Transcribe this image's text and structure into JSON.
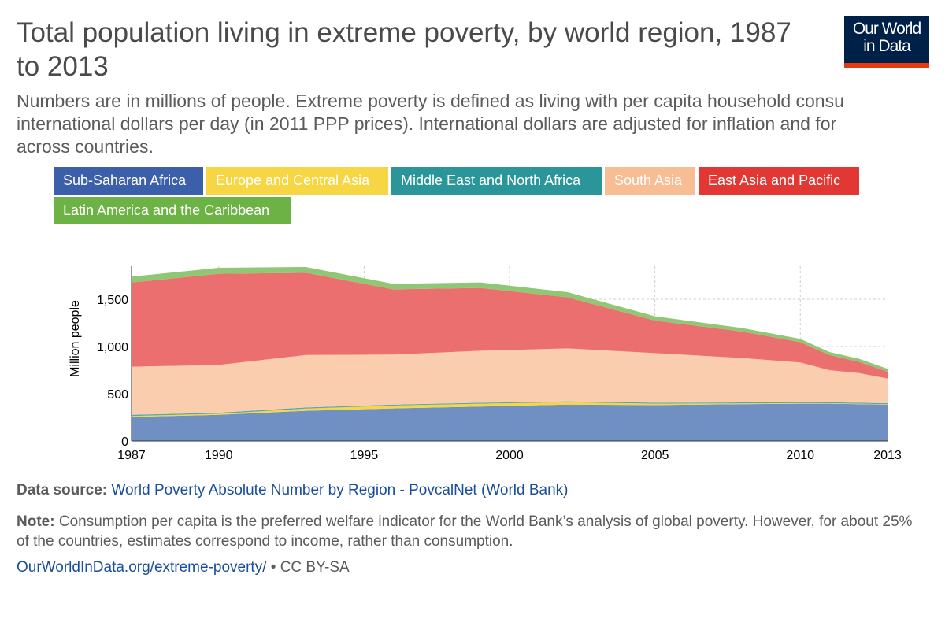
{
  "header": {
    "title": "Total population living in extreme poverty, by world region, 1987 to 2013",
    "subtitle_lines": [
      "Numbers are in millions of people. Extreme poverty is defined as living with per capita household consu",
      "international dollars per day (in 2011 PPP prices). International dollars are adjusted for inflation and for",
      "across countries."
    ],
    "logo_line1": "Our World",
    "logo_line2": "in Data"
  },
  "legend": [
    {
      "label": "Sub-Saharan Africa",
      "color": "#3b5fa8"
    },
    {
      "label": "Europe and Central Asia",
      "color": "#f6d743"
    },
    {
      "label": "Middle East and North Africa",
      "color": "#2a9699"
    },
    {
      "label": "South Asia",
      "color": "#f8bd93"
    },
    {
      "label": "East Asia and Pacific",
      "color": "#e13834"
    },
    {
      "label": "Latin America and the Caribbean",
      "color": "#6db244"
    }
  ],
  "chart_data": {
    "type": "area",
    "stacked": true,
    "ylabel": "Million people",
    "ylim": [
      0,
      1850
    ],
    "yticks": [
      0,
      500,
      1000,
      1500
    ],
    "ytick_labels": [
      "0",
      "500",
      "1,000",
      "1,500"
    ],
    "xlim": [
      1987,
      2013
    ],
    "xticks": [
      1987,
      1990,
      1995,
      2000,
      2005,
      2010,
      2013
    ],
    "gridlines": true,
    "x": [
      1987,
      1990,
      1993,
      1996,
      1999,
      2002,
      2005,
      2008,
      2010,
      2011,
      2012,
      2013
    ],
    "series": [
      {
        "name": "Sub-Saharan Africa",
        "color": "#7090c4",
        "values": [
          255,
          277,
          320,
          345,
          365,
          385,
          380,
          390,
          395,
          395,
          390,
          385
        ]
      },
      {
        "name": "Europe and Central Asia",
        "color": "#f6d743",
        "values": [
          10,
          11,
          23,
          30,
          30,
          25,
          15,
          8,
          6,
          5,
          5,
          5
        ]
      },
      {
        "name": "Middle East and North Africa",
        "color": "#5aa8ad",
        "values": [
          12,
          12,
          12,
          10,
          10,
          10,
          10,
          10,
          10,
          10,
          10,
          10
        ]
      },
      {
        "name": "South Asia",
        "color": "#f9cdad",
        "values": [
          510,
          505,
          555,
          530,
          550,
          560,
          525,
          470,
          420,
          340,
          315,
          262
        ]
      },
      {
        "name": "East Asia and Pacific",
        "color": "#eb6f6f",
        "values": [
          890,
          965,
          870,
          690,
          665,
          540,
          345,
          280,
          215,
          160,
          120,
          72
        ]
      },
      {
        "name": "Latin America and the Caribbean",
        "color": "#8fc774",
        "values": [
          62,
          63,
          62,
          58,
          58,
          55,
          45,
          38,
          35,
          32,
          32,
          30
        ]
      }
    ]
  },
  "footer": {
    "source_label": "Data source:",
    "source_link": "World Poverty Absolute Number by Region - PovcalNet (World Bank)",
    "note_label": "Note:",
    "note_text": "Consumption per capita is the preferred welfare indicator for the World Bank’s analysis of global poverty. However, for about 25% of the countries, estimates correspond to income, rather than consumption.",
    "url_link": "OurWorldInData.org/extreme-poverty/",
    "license": " • CC BY-SA"
  }
}
